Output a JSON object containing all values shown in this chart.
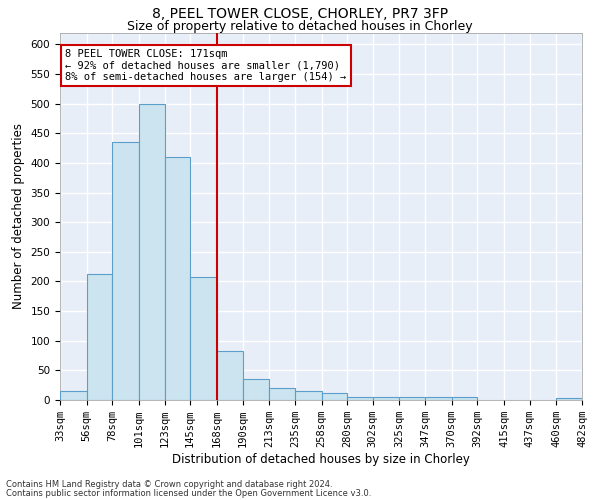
{
  "title1": "8, PEEL TOWER CLOSE, CHORLEY, PR7 3FP",
  "title2": "Size of property relative to detached houses in Chorley",
  "xlabel": "Distribution of detached houses by size in Chorley",
  "ylabel": "Number of detached properties",
  "footnote1": "Contains HM Land Registry data © Crown copyright and database right 2024.",
  "footnote2": "Contains public sector information licensed under the Open Government Licence v3.0.",
  "annotation_line1": "8 PEEL TOWER CLOSE: 171sqm",
  "annotation_line2": "← 92% of detached houses are smaller (1,790)",
  "annotation_line3": "8% of semi-detached houses are larger (154) →",
  "property_size": 171,
  "bin_edges": [
    33,
    56,
    78,
    101,
    123,
    145,
    168,
    190,
    213,
    235,
    258,
    280,
    302,
    325,
    347,
    370,
    392,
    415,
    437,
    460,
    482
  ],
  "bar_heights": [
    15,
    212,
    435,
    500,
    410,
    208,
    83,
    35,
    20,
    16,
    11,
    5,
    5,
    5,
    5,
    5,
    0,
    0,
    0,
    3
  ],
  "bar_color": "#cce4f0",
  "bar_edge_color": "#5b9ec9",
  "vline_color": "#cc0000",
  "vline_x": 168,
  "annotation_box_color": "#cc0000",
  "ylim": [
    0,
    620
  ],
  "yticks": [
    0,
    50,
    100,
    150,
    200,
    250,
    300,
    350,
    400,
    450,
    500,
    550,
    600
  ],
  "background_color": "#e8eef8",
  "grid_color": "#ffffff",
  "title1_fontsize": 10,
  "title2_fontsize": 9,
  "xlabel_fontsize": 8.5,
  "ylabel_fontsize": 8.5,
  "tick_fontsize": 7.5,
  "annot_fontsize": 7.5,
  "footnote_fontsize": 6.0
}
